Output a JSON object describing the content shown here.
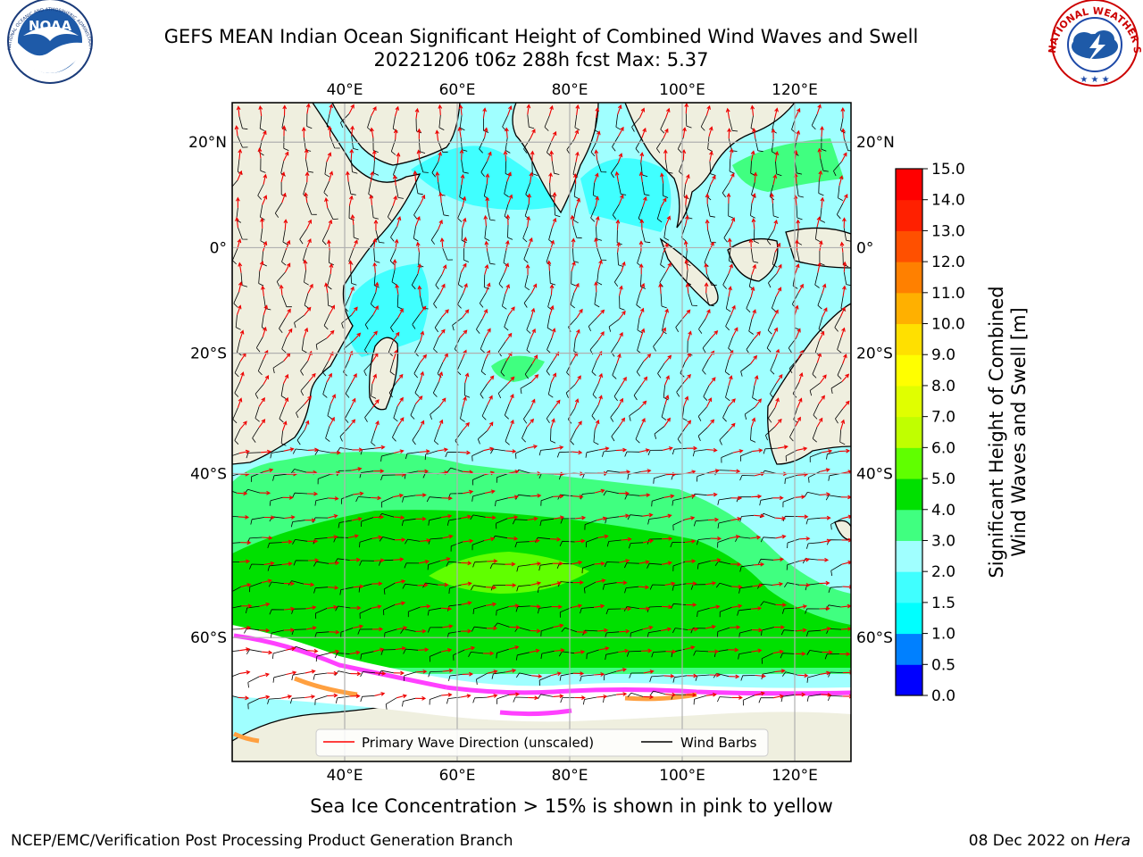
{
  "title": {
    "line1": "GEFS MEAN Indian Ocean Significant Height of Combined Wind Waves and Swell",
    "line2": "20221206 t06z 288h fcst   Max: 5.37"
  },
  "logos": {
    "noaa": {
      "text": "NOAA",
      "ring_text": "NATIONAL OCEANIC AND ATMOSPHERIC ADMINISTRATION · U.S. DEPARTMENT OF COMMERCE"
    },
    "nws": {
      "ring_text": "NATIONAL WEATHER SERVICE"
    }
  },
  "map": {
    "lon_ticks": [
      "40°E",
      "60°E",
      "80°E",
      "100°E",
      "120°E"
    ],
    "lon_values": [
      40,
      60,
      80,
      100,
      120
    ],
    "lat_ticks": [
      "20°N",
      "0°",
      "20°S",
      "40°S",
      "60°S"
    ],
    "lat_values": [
      20,
      0,
      -20,
      -40,
      -60
    ],
    "lon_range": [
      20,
      130
    ],
    "lat_range": [
      -70,
      27
    ],
    "grid": true,
    "land_color": "#efefdf",
    "ice_color": "#ffffff"
  },
  "legend": {
    "placement": "lower-center",
    "items": [
      {
        "label": "Primary Wave Direction (unscaled)",
        "color": "#ff0000"
      },
      {
        "label": "Wind Barbs",
        "color": "#000000"
      }
    ]
  },
  "colorbar": {
    "label_line1": "Significant Height of Combined",
    "label_line2": "Wind Waves and Swell [m]",
    "ticks": [
      "0.0",
      "0.5",
      "1.0",
      "1.5",
      "2.0",
      "3.0",
      "4.0",
      "5.0",
      "6.0",
      "7.0",
      "8.0",
      "9.0",
      "10.0",
      "11.0",
      "12.0",
      "13.0",
      "14.0",
      "15.0"
    ],
    "colors": [
      "#0000ff",
      "#0080ff",
      "#00ffff",
      "#40ffff",
      "#a0ffff",
      "#40ff80",
      "#00e000",
      "#60ff00",
      "#c0ff00",
      "#e0ff00",
      "#ffff00",
      "#ffe000",
      "#ffb000",
      "#ff8000",
      "#ff5000",
      "#ff2000",
      "#ff0000"
    ]
  },
  "caption": "Sea Ice Concentration > 15% is shown in pink to yellow",
  "footer": {
    "left": "NCEP/EMC/Verification Post Processing Product Generation Branch",
    "right_prefix": "08 Dec 2022 on",
    "right_host": "Hera"
  }
}
